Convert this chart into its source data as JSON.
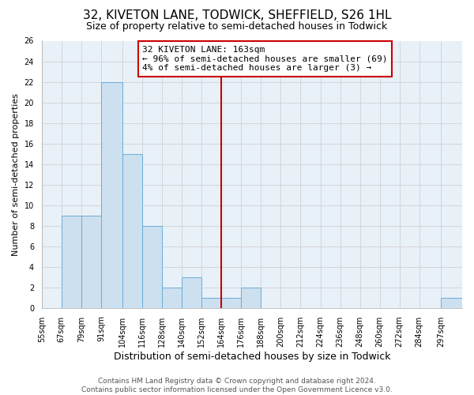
{
  "title": "32, KIVETON LANE, TODWICK, SHEFFIELD, S26 1HL",
  "subtitle": "Size of property relative to semi-detached houses in Todwick",
  "xlabel": "Distribution of semi-detached houses by size in Todwick",
  "ylabel": "Number of semi-detached properties",
  "bin_labels": [
    "55sqm",
    "67sqm",
    "79sqm",
    "91sqm",
    "104sqm",
    "116sqm",
    "128sqm",
    "140sqm",
    "152sqm",
    "164sqm",
    "176sqm",
    "188sqm",
    "200sqm",
    "212sqm",
    "224sqm",
    "236sqm",
    "248sqm",
    "260sqm",
    "272sqm",
    "284sqm",
    "297sqm"
  ],
  "bin_edges": [
    55,
    67,
    79,
    91,
    104,
    116,
    128,
    140,
    152,
    164,
    176,
    188,
    200,
    212,
    224,
    236,
    248,
    260,
    272,
    284,
    297,
    310
  ],
  "counts": [
    0,
    9,
    9,
    22,
    15,
    8,
    2,
    3,
    1,
    1,
    2,
    0,
    0,
    0,
    0,
    0,
    0,
    0,
    0,
    0,
    1
  ],
  "bar_color": "#cce0f0",
  "bar_edge_color": "#6aaed6",
  "grid_color": "#cccccc",
  "background_color": "#e8f0f8",
  "property_line_x": 164,
  "property_line_color": "#cc0000",
  "annotation_text": "32 KIVETON LANE: 163sqm\n← 96% of semi-detached houses are smaller (69)\n4% of semi-detached houses are larger (3) →",
  "annotation_box_color": "#ffffff",
  "annotation_box_edge_color": "#cc0000",
  "ylim": [
    0,
    26
  ],
  "yticks": [
    0,
    2,
    4,
    6,
    8,
    10,
    12,
    14,
    16,
    18,
    20,
    22,
    24,
    26
  ],
  "footer_line1": "Contains HM Land Registry data © Crown copyright and database right 2024.",
  "footer_line2": "Contains public sector information licensed under the Open Government Licence v3.0.",
  "title_fontsize": 11,
  "subtitle_fontsize": 9,
  "xlabel_fontsize": 9,
  "ylabel_fontsize": 8,
  "tick_fontsize": 7,
  "annotation_fontsize": 8,
  "footer_fontsize": 6.5
}
